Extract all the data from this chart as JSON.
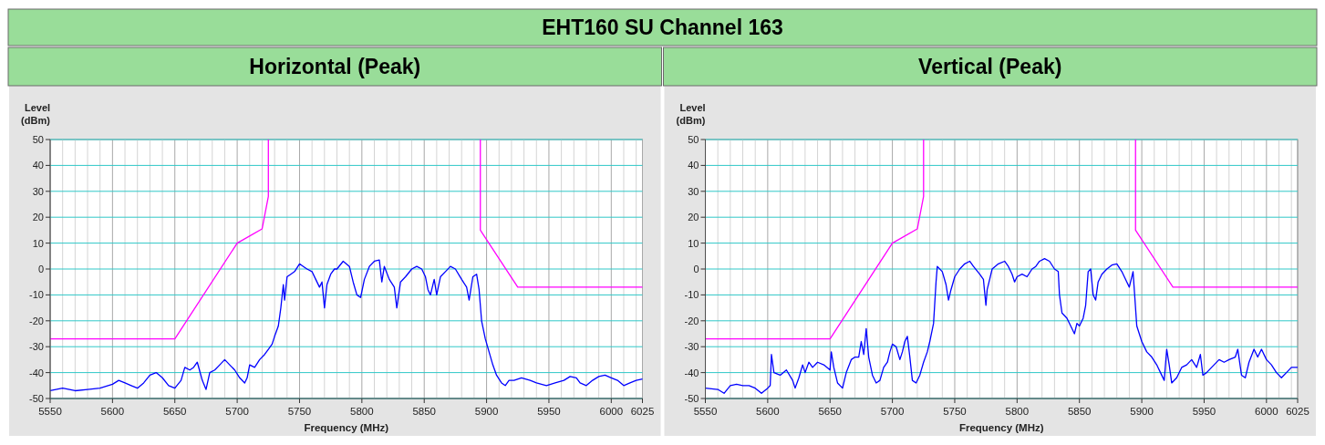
{
  "chart_data": [
    {
      "type": "line",
      "title": "EHT160 SU Channel 163",
      "subtitle": "Horizontal (Peak)",
      "xlabel": "Frequency (MHz)",
      "ylabel": "Level (dBm)",
      "xlim": [
        5550,
        6025
      ],
      "ylim": [
        -50,
        50
      ],
      "xticks": [
        5550,
        {
          "value": 5560,
          "label": null
        },
        {
          "value": 5570,
          "label": null
        },
        {
          "value": 5580,
          "label": null
        },
        {
          "value": 5590,
          "label": null
        },
        5600,
        {
          "value": 5610,
          "label": null
        },
        {
          "value": 5620,
          "label": null
        },
        {
          "value": 5630,
          "label": null
        },
        {
          "value": 5640,
          "label": null
        },
        5650,
        {
          "value": 5660,
          "label": null
        },
        {
          "value": 5670,
          "label": null
        },
        {
          "value": 5680,
          "label": null
        },
        {
          "value": 5690,
          "label": null
        },
        5700,
        {
          "value": 5710,
          "label": null
        },
        {
          "value": 5720,
          "label": null
        },
        {
          "value": 5730,
          "label": null
        },
        {
          "value": 5740,
          "label": null
        },
        5750,
        {
          "value": 5760,
          "label": null
        },
        {
          "value": 5770,
          "label": null
        },
        {
          "value": 5780,
          "label": null
        },
        {
          "value": 5790,
          "label": null
        },
        5800,
        {
          "value": 5810,
          "label": null
        },
        {
          "value": 5820,
          "label": null
        },
        {
          "value": 5830,
          "label": null
        },
        {
          "value": 5840,
          "label": null
        },
        5850,
        {
          "value": 5860,
          "label": null
        },
        {
          "value": 5870,
          "label": null
        },
        {
          "value": 5880,
          "label": null
        },
        {
          "value": 5890,
          "label": null
        },
        5900,
        {
          "value": 5910,
          "label": null
        },
        {
          "value": 5920,
          "label": null
        },
        {
          "value": 5930,
          "label": null
        },
        {
          "value": 5940,
          "label": null
        },
        5950,
        {
          "value": 5960,
          "label": null
        },
        {
          "value": 5970,
          "label": null
        },
        {
          "value": 5980,
          "label": null
        },
        {
          "value": 5990,
          "label": null
        },
        6000,
        {
          "value": 6010,
          "label": null
        },
        {
          "value": 6020,
          "label": null
        },
        6025
      ],
      "yticks": [
        -50,
        -40,
        -30,
        -20,
        -10,
        0,
        10,
        20,
        30,
        40,
        50
      ],
      "grid": true,
      "series": [
        {
          "color": "#0000ff",
          "x": [
            5550,
            5560,
            5570,
            5580,
            5590,
            5600,
            5605,
            5610,
            5615,
            5620,
            5625,
            5630,
            5635,
            5640,
            5645,
            5650,
            5655,
            5658,
            5662,
            5665,
            5668,
            5672,
            5675,
            5678,
            5682,
            5686,
            5690,
            5694,
            5698,
            5702,
            5706,
            5708,
            5710,
            5714,
            5718,
            5722,
            5725,
            5728,
            5730,
            5733,
            5735,
            5737,
            5738,
            5740,
            5743,
            5746,
            5750,
            5753,
            5756,
            5760,
            5763,
            5766,
            5768,
            5770,
            5772,
            5775,
            5778,
            5780,
            5785,
            5790,
            5793,
            5796,
            5799,
            5802,
            5806,
            5810,
            5814,
            5816,
            5818,
            5822,
            5826,
            5828,
            5831,
            5835,
            5840,
            5844,
            5848,
            5851,
            5853,
            5855,
            5858,
            5860,
            5863,
            5867,
            5871,
            5875,
            5880,
            5884,
            5886,
            5889,
            5892,
            5894,
            5896,
            5899,
            5902,
            5905,
            5908,
            5912,
            5915,
            5918,
            5922,
            5928,
            5935,
            5940,
            5948,
            5955,
            5962,
            5967,
            5972,
            5975,
            5980,
            5985,
            5990,
            5995,
            6000,
            6005,
            6010,
            6015,
            6020,
            6025
          ],
          "values": [
            -47,
            -46,
            -47,
            -46.5,
            -46,
            -44.5,
            -43,
            -44,
            -45,
            -46,
            -44,
            -41,
            -40,
            -42,
            -45,
            -46,
            -43,
            -38,
            -39,
            -38,
            -36,
            -43,
            -46.5,
            -40,
            -39,
            -37,
            -35,
            -37,
            -39,
            -42,
            -44,
            -42,
            -37,
            -38,
            -35,
            -33,
            -31,
            -29,
            -26,
            -22,
            -15,
            -6,
            -12,
            -3,
            -2,
            -1,
            2,
            1,
            0,
            -1,
            -4,
            -7,
            -5,
            -15,
            -6,
            -2,
            0,
            0,
            3,
            1,
            -5,
            -10,
            -11,
            -4,
            1,
            3,
            3.5,
            -5,
            1,
            -4,
            -7,
            -15,
            -5,
            -3,
            0,
            1,
            0,
            -3,
            -8,
            -10,
            -4,
            -10,
            -3,
            -1,
            1,
            0,
            -4,
            -7,
            -12,
            -3,
            -2,
            -8,
            -20,
            -27,
            -32,
            -37,
            -41,
            -44,
            -45,
            -43,
            -43,
            -42,
            -43,
            -44,
            -45,
            -44,
            -43,
            -41.5,
            -42,
            -44,
            -45,
            -43,
            -41.5,
            -41,
            -42,
            -43,
            -45,
            -44,
            -43,
            -42.5
          ]
        },
        {
          "color": "#ff00ff",
          "x": [
            5550,
            5650,
            5700,
            5720,
            5725,
            5725
          ],
          "values": [
            -27,
            -27,
            10,
            15.5,
            28,
            50
          ]
        },
        {
          "color": "#ff00ff",
          "x": [
            5895,
            5895,
            5925,
            6025
          ],
          "values": [
            50,
            15,
            -7,
            -7
          ]
        }
      ]
    },
    {
      "type": "line",
      "subtitle": "Vertical (Peak)",
      "xlabel": "Frequency (MHz)",
      "ylabel": "Level (dBm)",
      "xlim": [
        5550,
        6025
      ],
      "ylim": [
        -50,
        50
      ],
      "xticks": [
        5550,
        {
          "value": 5560,
          "label": null
        },
        {
          "value": 5570,
          "label": null
        },
        {
          "value": 5580,
          "label": null
        },
        {
          "value": 5590,
          "label": null
        },
        5600,
        {
          "value": 5610,
          "label": null
        },
        {
          "value": 5620,
          "label": null
        },
        {
          "value": 5630,
          "label": null
        },
        {
          "value": 5640,
          "label": null
        },
        5650,
        {
          "value": 5660,
          "label": null
        },
        {
          "value": 5670,
          "label": null
        },
        {
          "value": 5680,
          "label": null
        },
        {
          "value": 5690,
          "label": null
        },
        5700,
        {
          "value": 5710,
          "label": null
        },
        {
          "value": 5720,
          "label": null
        },
        {
          "value": 5730,
          "label": null
        },
        {
          "value": 5740,
          "label": null
        },
        5750,
        {
          "value": 5760,
          "label": null
        },
        {
          "value": 5770,
          "label": null
        },
        {
          "value": 5780,
          "label": null
        },
        {
          "value": 5790,
          "label": null
        },
        5800,
        {
          "value": 5810,
          "label": null
        },
        {
          "value": 5820,
          "label": null
        },
        {
          "value": 5830,
          "label": null
        },
        {
          "value": 5840,
          "label": null
        },
        5850,
        {
          "value": 5860,
          "label": null
        },
        {
          "value": 5870,
          "label": null
        },
        {
          "value": 5880,
          "label": null
        },
        {
          "value": 5890,
          "label": null
        },
        5900,
        {
          "value": 5910,
          "label": null
        },
        {
          "value": 5920,
          "label": null
        },
        {
          "value": 5930,
          "label": null
        },
        {
          "value": 5940,
          "label": null
        },
        5950,
        {
          "value": 5960,
          "label": null
        },
        {
          "value": 5970,
          "label": null
        },
        {
          "value": 5980,
          "label": null
        },
        {
          "value": 5990,
          "label": null
        },
        6000,
        {
          "value": 6010,
          "label": null
        },
        {
          "value": 6020,
          "label": null
        },
        6025
      ],
      "yticks": [
        -50,
        -40,
        -30,
        -20,
        -10,
        0,
        10,
        20,
        30,
        40,
        50
      ],
      "grid": true,
      "series": [
        {
          "color": "#0000ff",
          "x": [
            5550,
            5560,
            5565,
            5570,
            5575,
            5580,
            5585,
            5590,
            5595,
            5600,
            5602,
            5603,
            5605,
            5610,
            5615,
            5620,
            5622,
            5625,
            5628,
            5630,
            5633,
            5636,
            5640,
            5645,
            5650,
            5651,
            5653,
            5656,
            5660,
            5663,
            5667,
            5670,
            5673,
            5675,
            5677,
            5679,
            5681,
            5684,
            5687,
            5690,
            5693,
            5696,
            5698,
            5700,
            5703,
            5706,
            5708,
            5710,
            5712,
            5714,
            5716,
            5719,
            5722,
            5725,
            5728,
            5730,
            5733,
            5735,
            5736,
            5740,
            5743,
            5745,
            5747,
            5750,
            5754,
            5758,
            5762,
            5765,
            5770,
            5773,
            5775,
            5776,
            5778,
            5780,
            5785,
            5790,
            5793,
            5796,
            5798,
            5800,
            5804,
            5808,
            5812,
            5815,
            5818,
            5822,
            5826,
            5830,
            5833,
            5834,
            5836,
            5840,
            5843,
            5846,
            5848,
            5850,
            5853,
            5855,
            5857,
            5859,
            5861,
            5863,
            5865,
            5868,
            5872,
            5876,
            5880,
            5884,
            5888,
            5890,
            5893,
            5894,
            5896,
            5900,
            5904,
            5908,
            5912,
            5915,
            5918,
            5920,
            5922,
            5924,
            5928,
            5932,
            5936,
            5940,
            5944,
            5947,
            5949,
            5952,
            5956,
            5962,
            5966,
            5970,
            5975,
            5977,
            5980,
            5983,
            5986,
            5990,
            5993,
            5996,
            6000,
            6004,
            6008,
            6012,
            6016,
            6020,
            6025
          ],
          "values": [
            -46,
            -46.5,
            -48,
            -45,
            -44.5,
            -45,
            -45,
            -46,
            -48,
            -46,
            -45,
            -33,
            -40,
            -41,
            -39,
            -43,
            -46,
            -42,
            -37,
            -40,
            -36,
            -38,
            -36,
            -37,
            -39,
            -32,
            -38,
            -44,
            -46,
            -40,
            -35,
            -34,
            -34,
            -28,
            -33,
            -23,
            -34,
            -41,
            -44,
            -43,
            -38,
            -36,
            -32,
            -29,
            -30,
            -35,
            -32,
            -28,
            -26,
            -34,
            -43,
            -44,
            -41,
            -36,
            -32,
            -28,
            -21,
            -5,
            1,
            -1,
            -6,
            -12,
            -8,
            -3,
            0,
            2,
            3,
            1,
            -2,
            -4,
            -14,
            -8,
            -4,
            0,
            2,
            3,
            1,
            -2,
            -5,
            -3,
            -2,
            -3,
            0,
            1,
            3,
            4,
            3,
            0,
            -1,
            -10,
            -17,
            -19,
            -22,
            -25,
            -21,
            -22,
            -19,
            -14,
            -1,
            0,
            -10,
            -12,
            -5,
            -2,
            0,
            1.5,
            2,
            -1,
            -5,
            -7,
            -1,
            -8,
            -22,
            -28,
            -32,
            -34,
            -37,
            -40,
            -43,
            -31,
            -37,
            -44,
            -42,
            -38,
            -37,
            -35,
            -38,
            -33,
            -41,
            -40,
            -38,
            -35,
            -36,
            -35,
            -34,
            -31,
            -41,
            -42,
            -36,
            -31,
            -34,
            -31,
            -35,
            -37,
            -40,
            -42,
            -40,
            -38,
            -38
          ]
        },
        {
          "color": "#ff00ff",
          "x": [
            5550,
            5650,
            5700,
            5720,
            5725,
            5725
          ],
          "values": [
            -27,
            -27,
            10,
            15.5,
            28,
            50
          ]
        },
        {
          "color": "#ff00ff",
          "x": [
            5895,
            5895,
            5925,
            6025
          ],
          "values": [
            50,
            15,
            -7,
            -7
          ]
        }
      ]
    }
  ]
}
